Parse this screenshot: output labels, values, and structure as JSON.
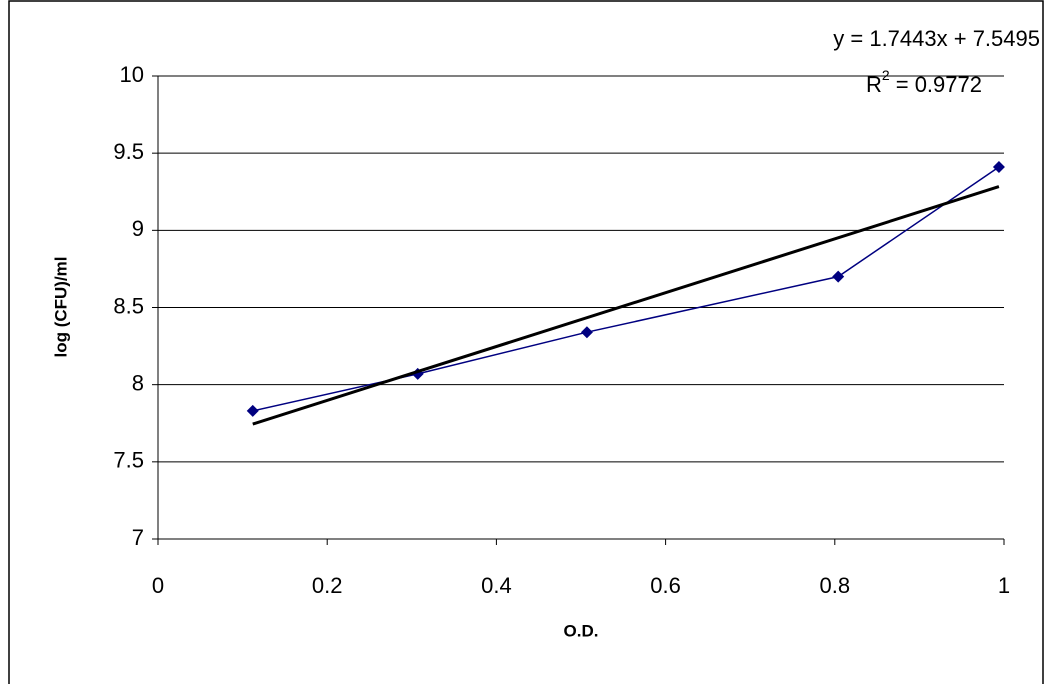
{
  "chart_data": {
    "type": "line",
    "x_label": "O.D.",
    "y_label": "log (CFU)/ml",
    "x": [
      0.112,
      0.307,
      0.507,
      0.804,
      0.994
    ],
    "series": [
      {
        "color": "#000080",
        "values": [
          7.83,
          8.07,
          8.34,
          8.7,
          9.41
        ]
      }
    ],
    "trendline": {
      "slope": 1.7443,
      "intercept": 7.5495,
      "color": "#000000",
      "equation": "y = 1.7443x + 7.5495",
      "r2_base": "R",
      "r2_sup": "2",
      "r2_rest": " = 0.9772"
    },
    "xlim": [
      0,
      1
    ],
    "xticks": [
      0,
      0.2,
      0.4,
      0.6,
      0.8,
      1
    ],
    "ylim": [
      7,
      10
    ],
    "yticks": [
      7,
      7.5,
      8,
      8.5,
      9,
      9.5,
      10
    ],
    "grid": true
  }
}
